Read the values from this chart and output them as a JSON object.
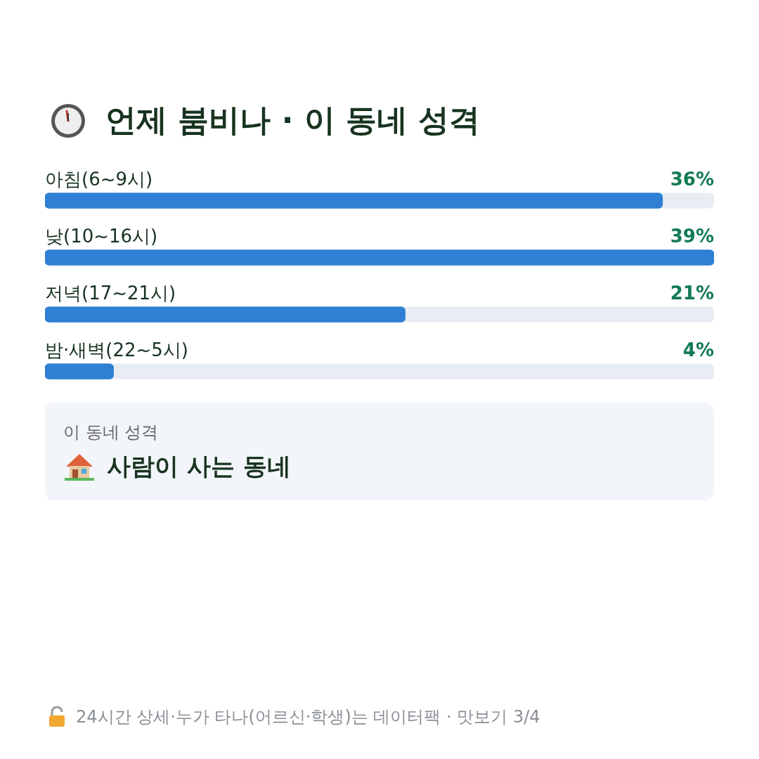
{
  "chart_data": {
    "type": "bar",
    "orientation": "horizontal",
    "title": "언제 붐비나 · 이 동네 성격",
    "categories": [
      "아침(6~9시)",
      "낮(10~16시)",
      "저녁(17~21시)",
      "밤·새벽(22~5시)"
    ],
    "values": [
      36,
      39,
      21,
      4
    ],
    "color": "#2f7fd4",
    "value_labels": [
      "36%",
      "39%",
      "21%",
      "4%"
    ],
    "xlim": [
      0,
      39
    ],
    "tick_labels": false,
    "annotations": [
      "이 동네 성격",
      "사람이 사는 동네",
      "24시간 상세·누가 타나(어르신·학생)는 데이터팩 · 맛보기 3/4"
    ]
  }
}
